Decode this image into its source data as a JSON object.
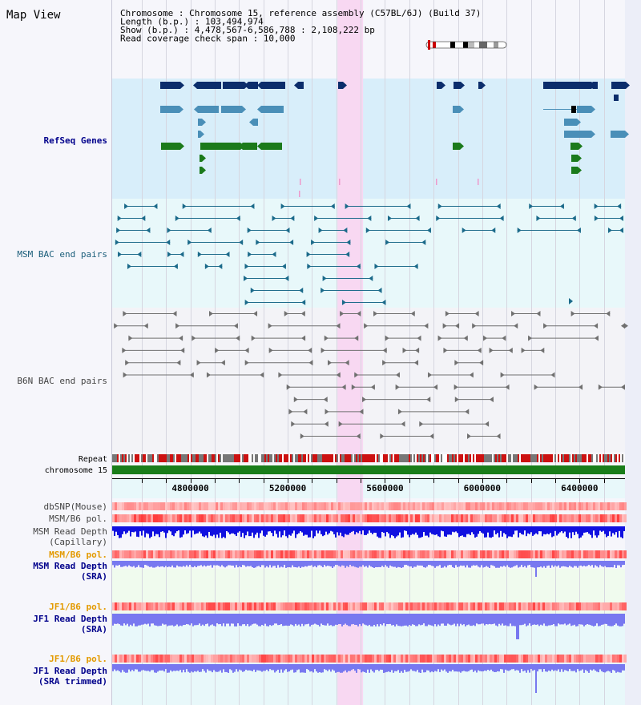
{
  "title": "Map View",
  "header": {
    "lines": [
      "Chromosome    : Chromosome 15, reference assembly (C57BL/6J) (Build 37)",
      "Length (b.p.) : 103,494,974",
      "  Show (b.p.) : 4,478,567-6,586,788 : 2,108,222 bp",
      "Read coverage check span : 10,000"
    ]
  },
  "range": {
    "start": 4478567,
    "end": 6586788
  },
  "highlight": {
    "start": 5405000,
    "end": 5510000
  },
  "axis": {
    "ticks": [
      4600000,
      4700000,
      4800000,
      4900000,
      5000000,
      5100000,
      5200000,
      5300000,
      5400000,
      5500000,
      5600000,
      5700000,
      5800000,
      5900000,
      6000000,
      6100000,
      6200000,
      6300000,
      6400000,
      6500000
    ],
    "labels": [
      "4800000",
      "5200000",
      "5600000",
      "6000000",
      "6400000"
    ]
  },
  "tracks": {
    "refseq": "RefSeq Genes",
    "msm_bac": "MSM BAC end pairs",
    "b6n_bac": "B6N BAC end pairs",
    "repeat": "Repeat",
    "chromosome": "chromosome 15",
    "dbsnp": "dbSNP(Mouse)",
    "msm_pol": "MSM/B6 pol.",
    "msm_depth_cap_1": "MSM Read Depth",
    "msm_depth_cap_2": "(Capillary)",
    "msm_pol_2": "MSM/B6 pol.",
    "msm_depth_sra_1": "MSM Read Depth",
    "msm_depth_sra_2": "(SRA)",
    "jf1_pol": "JF1/B6 pol.",
    "jf1_depth_1": "JF1 Read Depth",
    "jf1_depth_2": "(SRA)",
    "jf1_pol_2": "JF1/B6 pol.",
    "jf1_trim_1": "JF1 Read Depth",
    "jf1_trim_2": "(SRA trimmed)"
  },
  "colors": {
    "refseq_bg": "#d8eefa",
    "teal_bg": "#e8f8fa",
    "gray_bg": "#f3f3f7",
    "green_bg": "#f0fbee",
    "highlight": "#f8d8f2",
    "gene_dark": "#0b2d6b",
    "gene_light": "#4a8fb8",
    "gene_green": "#1b7a1b",
    "msm_bac": "#1b6a8a",
    "b6n_bac": "#707070",
    "chromosome": "#1a7d1a",
    "depth_blue": "#1010e0",
    "depth_light": "#7878f0",
    "label_blue": "#00008b",
    "label_teal": "#1a5d7a",
    "label_gray": "#444444",
    "label_orange": "#e39a00"
  }
}
